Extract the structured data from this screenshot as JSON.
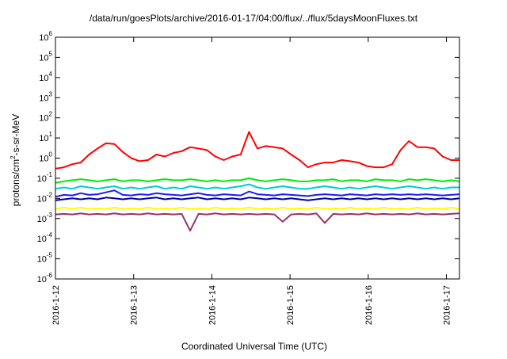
{
  "chart_data": {
    "type": "line",
    "title": "/data/run/goesPlots/archive/2016-01-17/04:00/flux/../flux/5daysMoonFluxes.txt",
    "xlabel": "Coordinated Universal Time (UTC)",
    "ylabel_parts": {
      "pre": "protons/cm",
      "sup": "2",
      "post": "-s-sr-MeV"
    },
    "y_scale": "log",
    "ylim": [
      1e-06,
      1000000.0
    ],
    "y_ticks": [
      {
        "value": 1e-06,
        "base": "10",
        "exp": "-6"
      },
      {
        "value": 1e-05,
        "base": "10",
        "exp": "-5"
      },
      {
        "value": 0.0001,
        "base": "10",
        "exp": "-4"
      },
      {
        "value": 0.001,
        "base": "10",
        "exp": "-3"
      },
      {
        "value": 0.01,
        "base": "10",
        "exp": "-2"
      },
      {
        "value": 0.1,
        "base": "10",
        "exp": "-1"
      },
      {
        "value": 1,
        "base": "10",
        "exp": "0"
      },
      {
        "value": 10,
        "base": "10",
        "exp": "1"
      },
      {
        "value": 100,
        "base": "10",
        "exp": "2"
      },
      {
        "value": 1000,
        "base": "10",
        "exp": "3"
      },
      {
        "value": 10000,
        "base": "10",
        "exp": "4"
      },
      {
        "value": 100000,
        "base": "10",
        "exp": "5"
      },
      {
        "value": 1000000,
        "base": "10",
        "exp": "6"
      }
    ],
    "x_axis": {
      "type": "date",
      "start": "2016-01-12",
      "end": "2016-01-17 04:00",
      "tick_labels": [
        "2016-1-12",
        "2016-1-13",
        "2016-1-14",
        "2016-1-15",
        "2016-1-16",
        "2016-1-17"
      ]
    },
    "grid": false,
    "series": [
      {
        "color": "#ff0000",
        "values": [
          0.3,
          0.35,
          0.5,
          0.6,
          1.5,
          3,
          5.5,
          5,
          2,
          1,
          0.7,
          0.8,
          1.5,
          1.2,
          1.8,
          2.2,
          3.5,
          3,
          2.5,
          1.2,
          0.8,
          1.2,
          1.5,
          20,
          3,
          4,
          3.5,
          3,
          1.5,
          0.8,
          0.35,
          0.5,
          0.6,
          0.6,
          0.8,
          0.7,
          0.6,
          0.4,
          0.35,
          0.35,
          0.5,
          2.5,
          7,
          3.5,
          3.5,
          3,
          1.2,
          0.8,
          0.8
        ]
      },
      {
        "color": "#00ee00",
        "values": [
          0.06,
          0.07,
          0.08,
          0.09,
          0.08,
          0.07,
          0.08,
          0.09,
          0.07,
          0.08,
          0.08,
          0.07,
          0.08,
          0.09,
          0.08,
          0.08,
          0.09,
          0.08,
          0.07,
          0.08,
          0.07,
          0.08,
          0.08,
          0.1,
          0.08,
          0.07,
          0.08,
          0.09,
          0.08,
          0.07,
          0.07,
          0.08,
          0.08,
          0.09,
          0.07,
          0.08,
          0.08,
          0.07,
          0.09,
          0.08,
          0.08,
          0.07,
          0.09,
          0.08,
          0.09,
          0.08,
          0.07,
          0.08,
          0.07
        ]
      },
      {
        "color": "#00cccc",
        "values": [
          0.03,
          0.035,
          0.03,
          0.04,
          0.035,
          0.03,
          0.035,
          0.04,
          0.03,
          0.035,
          0.03,
          0.035,
          0.04,
          0.03,
          0.035,
          0.03,
          0.04,
          0.035,
          0.03,
          0.035,
          0.03,
          0.035,
          0.04,
          0.05,
          0.035,
          0.03,
          0.035,
          0.04,
          0.035,
          0.03,
          0.03,
          0.035,
          0.04,
          0.035,
          0.03,
          0.035,
          0.03,
          0.035,
          0.04,
          0.035,
          0.03,
          0.035,
          0.04,
          0.035,
          0.03,
          0.035,
          0.03,
          0.035,
          0.035
        ]
      },
      {
        "color": "#1a1aff",
        "values": [
          0.012,
          0.015,
          0.014,
          0.018,
          0.015,
          0.016,
          0.02,
          0.025,
          0.015,
          0.014,
          0.016,
          0.015,
          0.018,
          0.016,
          0.015,
          0.014,
          0.016,
          0.018,
          0.015,
          0.014,
          0.016,
          0.015,
          0.014,
          0.022,
          0.016,
          0.015,
          0.014,
          0.016,
          0.015,
          0.014,
          0.013,
          0.015,
          0.016,
          0.015,
          0.014,
          0.016,
          0.015,
          0.014,
          0.016,
          0.015,
          0.016,
          0.015,
          0.016,
          0.015,
          0.016,
          0.015,
          0.014,
          0.015,
          0.016
        ]
      },
      {
        "color": "#0000aa",
        "values": [
          0.008,
          0.009,
          0.01,
          0.009,
          0.01,
          0.009,
          0.011,
          0.01,
          0.009,
          0.01,
          0.009,
          0.01,
          0.011,
          0.009,
          0.01,
          0.009,
          0.01,
          0.011,
          0.009,
          0.01,
          0.009,
          0.01,
          0.009,
          0.011,
          0.01,
          0.009,
          0.01,
          0.009,
          0.01,
          0.009,
          0.008,
          0.009,
          0.01,
          0.009,
          0.01,
          0.009,
          0.01,
          0.009,
          0.01,
          0.009,
          0.01,
          0.009,
          0.01,
          0.009,
          0.01,
          0.009,
          0.01,
          0.009,
          0.01
        ]
      },
      {
        "color": "#ffff00",
        "values": [
          0.003,
          0.0035,
          0.003,
          0.0035,
          0.003,
          0.0032,
          0.003,
          0.0035,
          0.003,
          0.0032,
          0.003,
          0.0035,
          0.003,
          0.0032,
          0.003,
          0.0035,
          0.003,
          0.0032,
          0.003,
          0.0035,
          0.003,
          0.0032,
          0.003,
          0.0035,
          0.003,
          0.0032,
          0.003,
          0.0035,
          0.003,
          0.0032,
          0.003,
          0.0035,
          0.003,
          0.0032,
          0.003,
          0.0035,
          0.003,
          0.0032,
          0.003,
          0.0035,
          0.003,
          0.0032,
          0.003,
          0.0035,
          0.003,
          0.0032,
          0.003,
          0.0035,
          0.003
        ]
      },
      {
        "color": "#993366",
        "values": [
          0.0016,
          0.0017,
          0.0016,
          0.0018,
          0.0016,
          0.0017,
          0.0016,
          0.0018,
          0.0016,
          0.0017,
          0.0016,
          0.0018,
          0.0016,
          0.0017,
          0.0016,
          0.0017,
          0.00025,
          0.0017,
          0.0016,
          0.0018,
          0.0016,
          0.0017,
          0.0016,
          0.0017,
          0.0016,
          0.0017,
          0.0016,
          0.0007,
          0.0016,
          0.0017,
          0.0016,
          0.0018,
          0.0006,
          0.0017,
          0.0016,
          0.0017,
          0.0016,
          0.0018,
          0.0016,
          0.0017,
          0.0016,
          0.0017,
          0.0016,
          0.0018,
          0.0016,
          0.0017,
          0.0016,
          0.0017,
          0.0018
        ]
      }
    ]
  }
}
